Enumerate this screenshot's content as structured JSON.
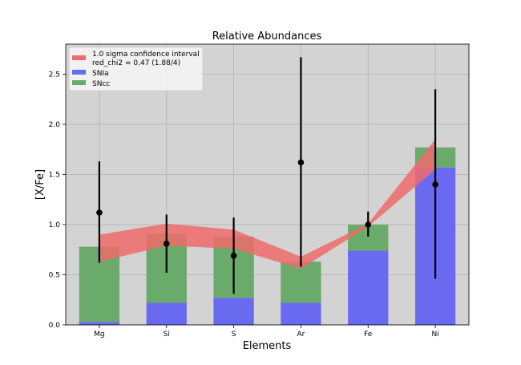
{
  "chart_data": {
    "type": "bar",
    "title": "Relative Abundances",
    "xlabel": "Elements",
    "ylabel": "[X/Fe]",
    "categories": [
      "Mg",
      "Si",
      "S",
      "Ar",
      "Fe",
      "Ni"
    ],
    "ylim": [
      0,
      2.8
    ],
    "yticks": [
      0.0,
      0.5,
      1.0,
      1.5,
      2.0,
      2.5
    ],
    "ytick_labels": [
      "0.0",
      "0.5",
      "1.0",
      "1.5",
      "2.0",
      "2.5"
    ],
    "grid": true,
    "stacked": true,
    "series": [
      {
        "name": "SNIa",
        "color": "#6a6af0",
        "values": [
          0.03,
          0.22,
          0.27,
          0.22,
          0.74,
          1.57
        ]
      },
      {
        "name": "SNcc",
        "color": "#6aaa6a",
        "values": [
          0.75,
          0.69,
          0.61,
          0.41,
          0.26,
          0.2
        ]
      }
    ],
    "confidence_band": {
      "label": "1.0 sigma confidence interval",
      "color": "#ee6b6b",
      "lower": [
        0.63,
        0.79,
        0.76,
        0.56,
        0.98,
        1.55
      ],
      "upper": [
        0.9,
        1.01,
        0.95,
        0.68,
        1.01,
        1.85
      ]
    },
    "observations": {
      "values": [
        1.12,
        0.81,
        0.69,
        1.62,
        1.0,
        1.4
      ],
      "err_low": [
        0.5,
        0.29,
        0.38,
        1.04,
        0.12,
        0.94
      ],
      "err_high": [
        0.51,
        0.29,
        0.38,
        1.05,
        0.13,
        0.95
      ]
    },
    "legend": {
      "position": "upper-left",
      "entries": [
        "1.0 sigma confidence interval",
        "red_chi2 = 0.47 (1.88/4)",
        "SNIa",
        "SNcc"
      ]
    }
  }
}
